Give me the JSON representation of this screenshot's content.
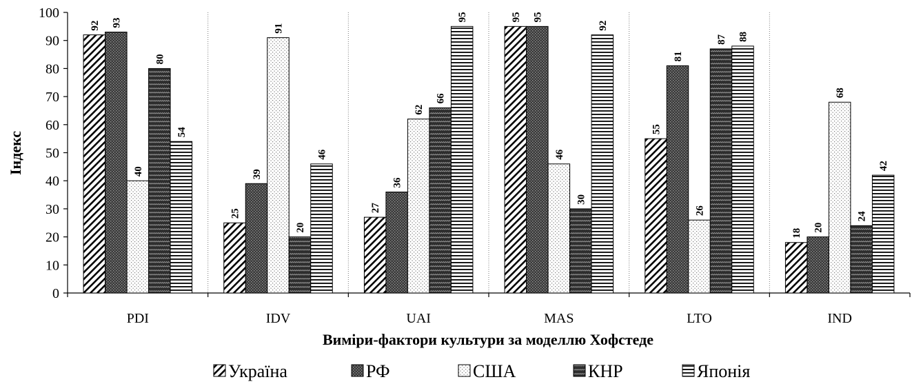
{
  "chart_data": {
    "type": "bar",
    "title": "",
    "xlabel": "Виміри-фактори культури за моделлю Хофстеде",
    "ylabel": "Індекс",
    "ylim": [
      0,
      100
    ],
    "yticks": [
      0,
      10,
      20,
      30,
      40,
      50,
      60,
      70,
      80,
      90,
      100
    ],
    "categories": [
      "PDI",
      "IDV",
      "UAI",
      "MAS",
      "LTO",
      "IND"
    ],
    "grid": false,
    "legend_position": "bottom",
    "series": [
      {
        "name": "Україна",
        "pattern": "diagonal-hatch",
        "values": [
          92,
          25,
          27,
          95,
          55,
          18
        ]
      },
      {
        "name": "РФ",
        "pattern": "dark-dots",
        "values": [
          93,
          39,
          36,
          95,
          81,
          20
        ]
      },
      {
        "name": "США",
        "pattern": "light-dots",
        "values": [
          40,
          91,
          62,
          46,
          26,
          68
        ]
      },
      {
        "name": "КНР",
        "pattern": "dark-zigzag",
        "values": [
          80,
          20,
          66,
          30,
          87,
          24
        ]
      },
      {
        "name": "Японія",
        "pattern": "horizontal-lines",
        "values": [
          54,
          46,
          95,
          92,
          88,
          42
        ]
      }
    ]
  }
}
